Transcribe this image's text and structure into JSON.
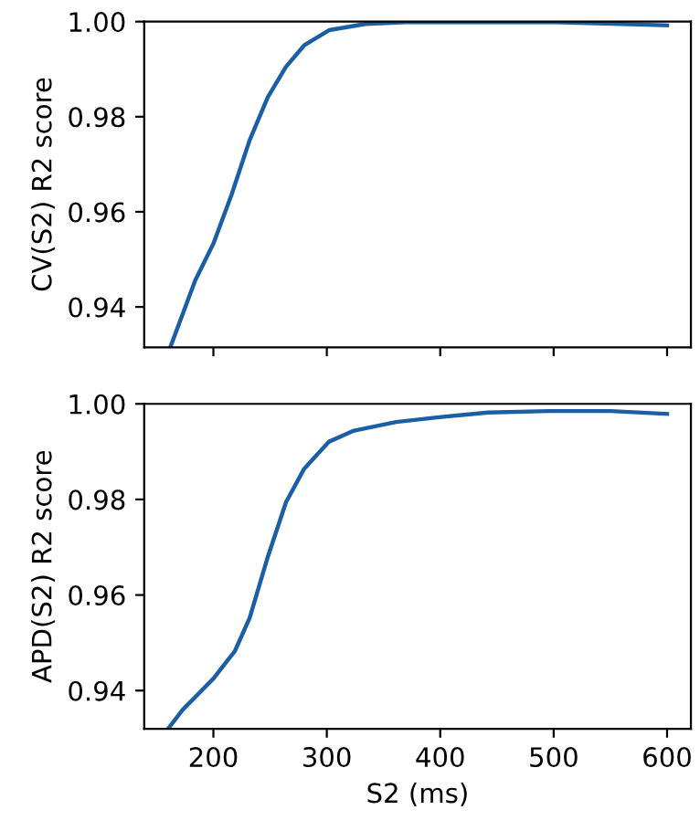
{
  "chart_data": [
    {
      "type": "line",
      "ylabel": "CV(S2) R2 score",
      "tick_labels": "y",
      "xlim": [
        139,
        621
      ],
      "xticks": [
        200,
        300,
        400,
        500,
        600
      ],
      "ylim": [
        0.9315,
        1.0
      ],
      "yticks": [
        0.94,
        0.96,
        0.98,
        {
          "value": 1.0,
          "label": "1.00"
        }
      ],
      "x": [
        162,
        184,
        200,
        216,
        232,
        248,
        264,
        280,
        302,
        334,
        370,
        420,
        500,
        560,
        600
      ],
      "series": [
        {
          "color": "#1a5fa5",
          "values": [
            0.9315,
            0.9456,
            0.9533,
            0.9636,
            0.9751,
            0.9841,
            0.9905,
            0.995,
            0.9982,
            0.9995,
            0.9999,
            0.9999,
            0.9999,
            0.9995,
            0.9992
          ]
        }
      ]
    },
    {
      "type": "line",
      "ylabel": "APD(S2) R2 score",
      "xlabel": "S2 (ms)",
      "xlim": [
        139,
        621
      ],
      "xticks": [
        200,
        300,
        400,
        500,
        600
      ],
      "ylim": [
        0.932,
        1.0
      ],
      "yticks": [
        0.94,
        0.96,
        0.98,
        {
          "value": 1.0,
          "label": "1.00"
        }
      ],
      "x": [
        160,
        173,
        200,
        219,
        232,
        248,
        264,
        280,
        302,
        324,
        361,
        399,
        442,
        496,
        550,
        600
      ],
      "series": [
        {
          "color": "#1a5fa5",
          "values": [
            0.932,
            0.936,
            0.9425,
            0.9483,
            0.9552,
            0.968,
            0.9794,
            0.9864,
            0.9921,
            0.9944,
            0.9962,
            0.9972,
            0.9982,
            0.9985,
            0.9985,
            0.9979
          ]
        }
      ]
    }
  ]
}
